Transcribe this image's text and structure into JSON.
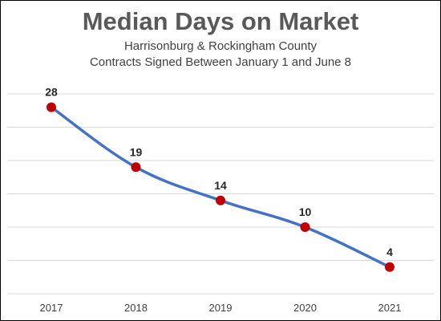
{
  "chart_data": {
    "type": "line",
    "title": "Median Days on Market",
    "subtitle_lines": [
      "Harrisonburg & Rockingham County",
      "Contracts Signed Between January 1 and June 8"
    ],
    "categories": [
      "2017",
      "2018",
      "2019",
      "2020",
      "2021"
    ],
    "series": [
      {
        "values": [
          28,
          19,
          14,
          10,
          4
        ]
      }
    ],
    "ylim": [
      0,
      30
    ],
    "grid": true,
    "data_labels": true,
    "colors": {
      "line": "#4472C4",
      "marker": "#C00000",
      "grid": "#D9D9D9"
    }
  }
}
